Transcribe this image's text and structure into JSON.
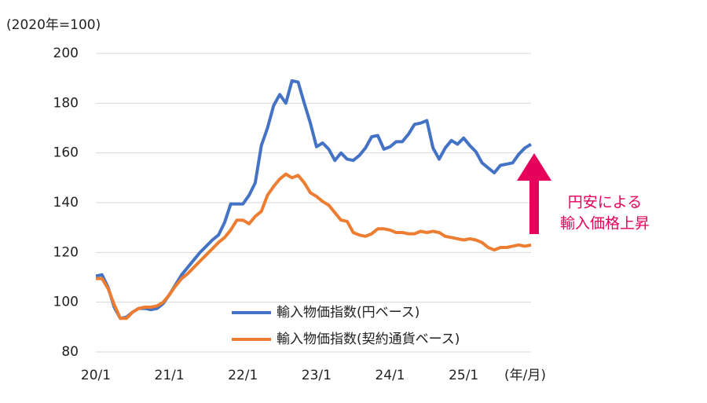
{
  "chart_data": {
    "type": "line",
    "ylabel": "(2020年=100)",
    "xlabel": "(年/月)",
    "categories": [
      "20/1",
      null,
      null,
      null,
      null,
      null,
      null,
      null,
      null,
      null,
      null,
      null,
      "21/1",
      null,
      null,
      null,
      null,
      null,
      null,
      null,
      null,
      null,
      null,
      null,
      "22/1",
      null,
      null,
      null,
      null,
      null,
      null,
      null,
      null,
      null,
      null,
      null,
      "23/1",
      null,
      null,
      null,
      null,
      null,
      null,
      null,
      null,
      null,
      null,
      null,
      "24/1",
      null,
      null,
      null,
      null,
      null,
      null,
      null,
      null,
      null,
      null,
      null,
      "25/1",
      null,
      null,
      null,
      null,
      null,
      null,
      null,
      null,
      null,
      null,
      null
    ],
    "series": [
      {
        "name": "輸入物価指数(円ベース)",
        "color": "#4472c4",
        "values": [
          110.5,
          111,
          106,
          98,
          93.5,
          94,
          96,
          97.5,
          97.5,
          97,
          97.5,
          99.5,
          103,
          107,
          111,
          114,
          117,
          120,
          122.5,
          125,
          127,
          132,
          139.5,
          139.5,
          139.5,
          143,
          148,
          163,
          170,
          179,
          183.5,
          180,
          189,
          188.5,
          180,
          172,
          162.5,
          164,
          161.5,
          157,
          160,
          157.5,
          157,
          159,
          162,
          166.5,
          167,
          161.5,
          162.5,
          164.5,
          164.5,
          167.5,
          171.5,
          172,
          173,
          162,
          157.5,
          162,
          165,
          163.5,
          166,
          163,
          160.5,
          156,
          154,
          152,
          155,
          155.5,
          156,
          159.5,
          162,
          163.5
        ]
      },
      {
        "name": "輸入物価指数(契約通貨ベース)",
        "color": "#ed7d31",
        "values": [
          109.5,
          109.5,
          105.5,
          99,
          93.5,
          93.5,
          96,
          97.5,
          98,
          98,
          98.5,
          100,
          103,
          106.5,
          109.5,
          111.5,
          114,
          116.5,
          119,
          121.5,
          124,
          126,
          129,
          133,
          133,
          131.5,
          134.5,
          136.5,
          143,
          146.5,
          149.5,
          151.5,
          150,
          151,
          148,
          144,
          142.5,
          140.5,
          139,
          136,
          133,
          132.5,
          128,
          127,
          126.5,
          127.5,
          129.5,
          129.5,
          129,
          128,
          128,
          127.5,
          127.5,
          128.5,
          128,
          128.5,
          128,
          126.5,
          126,
          125.5,
          125,
          125.5,
          125,
          124,
          122,
          121,
          122,
          122,
          122.5,
          123,
          122.5,
          123
        ]
      }
    ],
    "ylim": [
      80,
      200
    ],
    "yticks": [
      80,
      100,
      120,
      140,
      160,
      180,
      200
    ],
    "grid": true,
    "annotation": {
      "lines": [
        "円安による",
        "輸入価格上昇"
      ],
      "color": "#e6005c"
    }
  }
}
